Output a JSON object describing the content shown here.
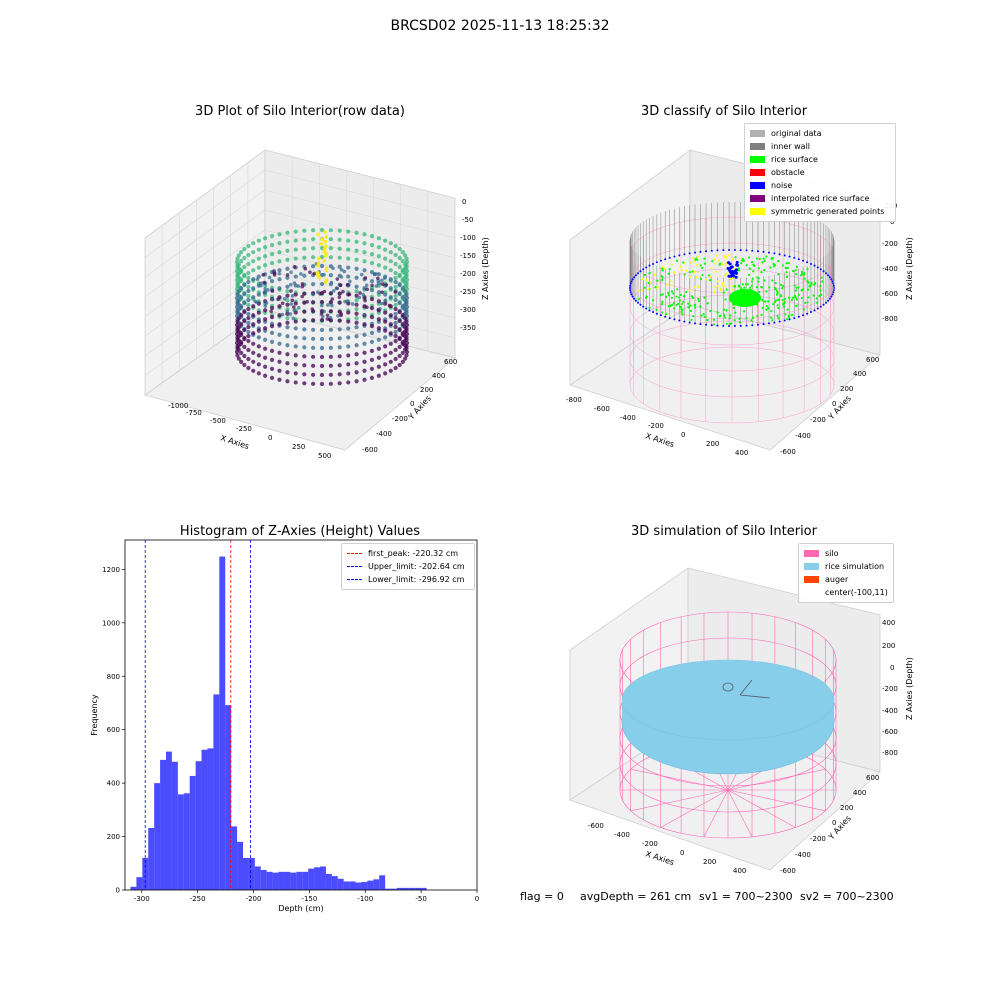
{
  "suptitle": "BRCSD02 2025-11-13 18:25:32",
  "panels": {
    "raw": {
      "title": "3D Plot of Silo Interior(row data)",
      "xlabel": "X Axies",
      "ylabel": "Y Axies",
      "zlabel": "Z Axies (Depth)",
      "xticks": [
        "-1000",
        "-750",
        "-500",
        "-250",
        "0",
        "250",
        "500"
      ],
      "yticks": [
        "-600",
        "-400",
        "-200",
        "0",
        "200",
        "400",
        "600"
      ],
      "zticks": [
        "0",
        "-50",
        "-100",
        "-150",
        "-200",
        "-250",
        "-300",
        "-350"
      ],
      "colormap": [
        "#440154",
        "#31688e",
        "#35b779",
        "#fde725"
      ]
    },
    "classify": {
      "title": "3D classify of Silo Interior",
      "xlabel": "X Axies",
      "ylabel": "Y Axies",
      "zlabel": "Z Axies (Depth)",
      "xticks": [
        "-800",
        "-600",
        "-400",
        "-200",
        "0",
        "200",
        "400"
      ],
      "yticks": [
        "-600",
        "-400",
        "-200",
        "0",
        "200",
        "400",
        "600"
      ],
      "zticks": [
        "200",
        "0",
        "-200",
        "-400",
        "-600",
        "-800"
      ],
      "legend": [
        {
          "label": "original data",
          "color": "#b0b0b0"
        },
        {
          "label": "inner wall",
          "color": "#808080"
        },
        {
          "label": "rice surface",
          "color": "#00ff00"
        },
        {
          "label": "obstacle",
          "color": "#ff0000"
        },
        {
          "label": "noise",
          "color": "#0000ff"
        },
        {
          "label": "interpolated rice surface",
          "color": "#800080"
        },
        {
          "label": "symmetric generated points",
          "color": "#ffff00"
        }
      ]
    },
    "simulation": {
      "title": "3D simulation of Silo Interior",
      "xlabel": "X Axies",
      "ylabel": "Y Axies",
      "zlabel": "Z Axies (Depth)",
      "xticks": [
        "-600",
        "-400",
        "-200",
        "0",
        "200",
        "400"
      ],
      "yticks": [
        "-600",
        "-400",
        "-200",
        "0",
        "200",
        "400",
        "600"
      ],
      "zticks": [
        "400",
        "200",
        "0",
        "-200",
        "-400",
        "-600",
        "-800"
      ],
      "legend": [
        {
          "label": "silo",
          "color": "#ff69b4"
        },
        {
          "label": "rice simulation",
          "color": "#87ceeb"
        },
        {
          "label": "auger",
          "color": "#ff4500"
        },
        {
          "label": "center(-100,11)",
          "color": ""
        }
      ]
    }
  },
  "chart_data": {
    "type": "bar",
    "title": "Histogram of Z-Axies (Height) Values",
    "xlabel": "Depth (cm)",
    "ylabel": "Frequency",
    "xlim": [
      -315,
      0
    ],
    "ylim": [
      0,
      1310
    ],
    "xticks": [
      -300,
      -250,
      -200,
      -150,
      -100,
      -50,
      0
    ],
    "yticks": [
      0,
      200,
      400,
      600,
      800,
      1000,
      1200
    ],
    "bar_color": "#0000ff",
    "bin_width": 5.3,
    "bins": [
      {
        "x0": -310.1,
        "count": 12
      },
      {
        "x0": -304.8,
        "count": 48
      },
      {
        "x0": -299.5,
        "count": 120
      },
      {
        "x0": -294.2,
        "count": 232
      },
      {
        "x0": -288.9,
        "count": 400
      },
      {
        "x0": -283.6,
        "count": 487
      },
      {
        "x0": -278.3,
        "count": 518
      },
      {
        "x0": -273.0,
        "count": 480
      },
      {
        "x0": -267.7,
        "count": 358
      },
      {
        "x0": -262.4,
        "count": 362
      },
      {
        "x0": -257.1,
        "count": 427
      },
      {
        "x0": -251.8,
        "count": 482
      },
      {
        "x0": -246.5,
        "count": 525
      },
      {
        "x0": -241.2,
        "count": 530
      },
      {
        "x0": -235.9,
        "count": 732
      },
      {
        "x0": -230.6,
        "count": 1248
      },
      {
        "x0": -225.3,
        "count": 692
      },
      {
        "x0": -220.0,
        "count": 238
      },
      {
        "x0": -214.7,
        "count": 180
      },
      {
        "x0": -209.4,
        "count": 120
      },
      {
        "x0": -204.1,
        "count": 120
      },
      {
        "x0": -198.8,
        "count": 88
      },
      {
        "x0": -193.5,
        "count": 75
      },
      {
        "x0": -188.2,
        "count": 68
      },
      {
        "x0": -182.9,
        "count": 65
      },
      {
        "x0": -177.6,
        "count": 68
      },
      {
        "x0": -172.3,
        "count": 68
      },
      {
        "x0": -167.0,
        "count": 65
      },
      {
        "x0": -161.7,
        "count": 68
      },
      {
        "x0": -156.4,
        "count": 68
      },
      {
        "x0": -151.1,
        "count": 80
      },
      {
        "x0": -145.8,
        "count": 85
      },
      {
        "x0": -140.5,
        "count": 88
      },
      {
        "x0": -135.2,
        "count": 60
      },
      {
        "x0": -129.9,
        "count": 52
      },
      {
        "x0": -124.6,
        "count": 42
      },
      {
        "x0": -119.3,
        "count": 32
      },
      {
        "x0": -114.0,
        "count": 32
      },
      {
        "x0": -108.7,
        "count": 28
      },
      {
        "x0": -103.4,
        "count": 30
      },
      {
        "x0": -98.1,
        "count": 35
      },
      {
        "x0": -92.8,
        "count": 40
      },
      {
        "x0": -87.5,
        "count": 55
      },
      {
        "x0": -82.2,
        "count": 5
      },
      {
        "x0": -76.9,
        "count": 5
      },
      {
        "x0": -71.6,
        "count": 8
      },
      {
        "x0": -66.3,
        "count": 8
      },
      {
        "x0": -61.0,
        "count": 8
      },
      {
        "x0": -55.7,
        "count": 8
      },
      {
        "x0": -50.4,
        "count": 8
      }
    ],
    "vlines": [
      {
        "label": "first_peak: -220.32 cm",
        "x": -220.32,
        "color": "#ff0000"
      },
      {
        "label": "Upper_limit: -202.64 cm",
        "x": -202.64,
        "color": "#0000ff"
      },
      {
        "label": "Lower_limit: -296.92 cm",
        "x": -296.92,
        "color": "#0000ff"
      }
    ],
    "legend_loc": "upper right"
  },
  "footer": {
    "flag": "flag = 0",
    "avg": "avgDepth = 261 cm",
    "sv1": "sv1 = 700~2300",
    "sv2": "sv2 = 700~2300"
  }
}
